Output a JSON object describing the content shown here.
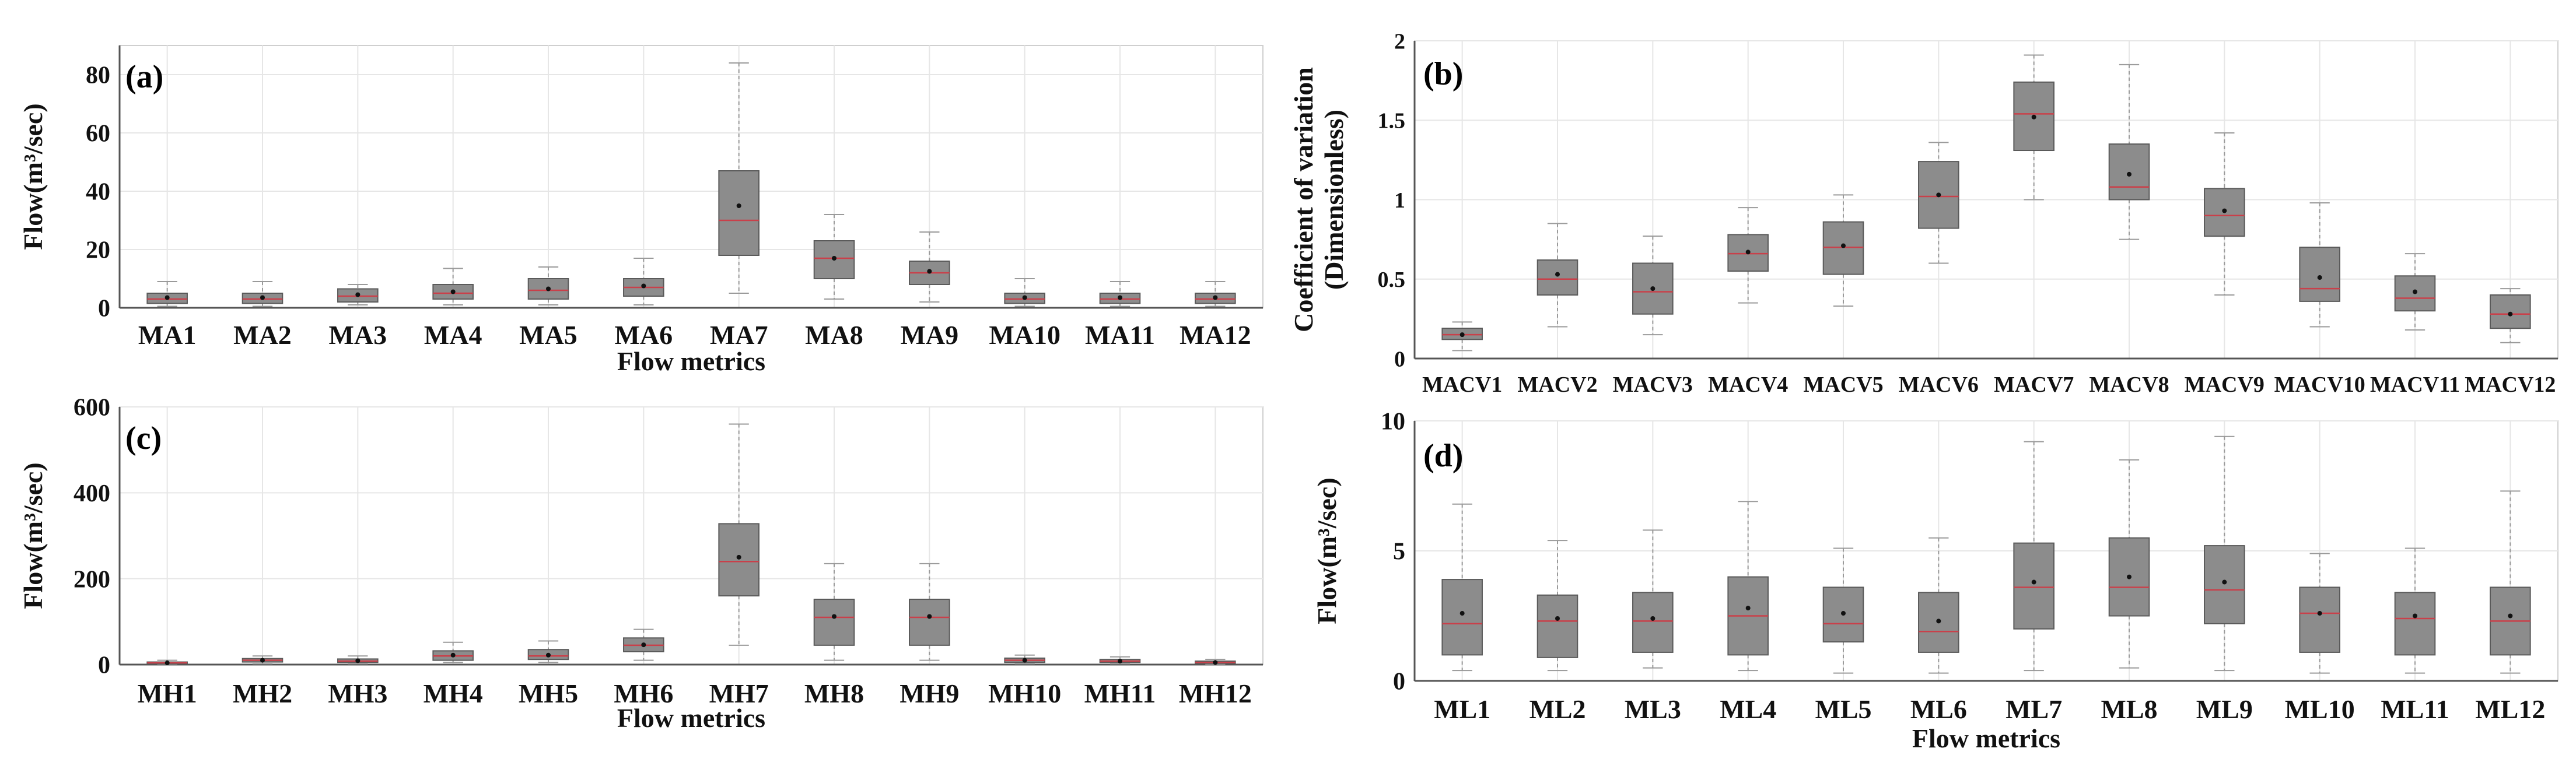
{
  "colors": {
    "box_fill": "#8c8c8c",
    "box_edge": "#5a5a5a",
    "whisker": "#9a9a9a",
    "median": "#c9404a",
    "mean": "#111111",
    "grid": "#e6e6e6",
    "axis": "#555555"
  },
  "chart_data": [
    {
      "type": "box",
      "panel_label": "(a)",
      "xlabel": "Flow metrics",
      "ylabel": "Flow(m³/sec)",
      "ylim": [
        0,
        90
      ],
      "yticks": [
        "0",
        "20",
        "40",
        "60",
        "80"
      ],
      "categories": [
        "MA1",
        "MA2",
        "MA3",
        "MA4",
        "MA5",
        "MA6",
        "MA7",
        "MA8",
        "MA9",
        "MA10",
        "MA11",
        "MA12"
      ],
      "boxes": [
        {
          "min": 0.5,
          "q1": 1.5,
          "median": 3,
          "q3": 5,
          "max": 9,
          "mean": 3.5
        },
        {
          "min": 0.5,
          "q1": 1.5,
          "median": 3,
          "q3": 5,
          "max": 9,
          "mean": 3.5
        },
        {
          "min": 1,
          "q1": 2,
          "median": 4,
          "q3": 6.5,
          "max": 8,
          "mean": 4.5
        },
        {
          "min": 1,
          "q1": 3,
          "median": 5,
          "q3": 8,
          "max": 13.5,
          "mean": 5.5
        },
        {
          "min": 1,
          "q1": 3,
          "median": 6,
          "q3": 10,
          "max": 14,
          "mean": 6.5
        },
        {
          "min": 1,
          "q1": 4,
          "median": 7,
          "q3": 10,
          "max": 17,
          "mean": 7.5
        },
        {
          "min": 5,
          "q1": 18,
          "median": 30,
          "q3": 47,
          "max": 84,
          "mean": 35
        },
        {
          "min": 3,
          "q1": 10,
          "median": 17,
          "q3": 23,
          "max": 32,
          "mean": 17
        },
        {
          "min": 2,
          "q1": 8,
          "median": 12,
          "q3": 16,
          "max": 26,
          "mean": 12.5
        },
        {
          "min": 0.5,
          "q1": 1.5,
          "median": 3,
          "q3": 5,
          "max": 10,
          "mean": 3.5
        },
        {
          "min": 0.5,
          "q1": 1.5,
          "median": 3,
          "q3": 5,
          "max": 9,
          "mean": 3.5
        },
        {
          "min": 0.5,
          "q1": 1.5,
          "median": 3,
          "q3": 5,
          "max": 9,
          "mean": 3.5
        }
      ]
    },
    {
      "type": "box",
      "panel_label": "(b)",
      "xlabel": "",
      "ylabel": "Coefficient of variation",
      "ylabel2": "(Dimensionless)",
      "ylim": [
        0,
        2
      ],
      "yticks": [
        "0",
        "0.5",
        "1",
        "1.5",
        "2"
      ],
      "categories": [
        "MACV1",
        "MACV2",
        "MACV3",
        "MACV4",
        "MACV5",
        "MACV6",
        "MACV7",
        "MACV8",
        "MACV9",
        "MACV10",
        "MACV11",
        "MACV12"
      ],
      "boxes": [
        {
          "min": 0.05,
          "q1": 0.12,
          "median": 0.15,
          "q3": 0.19,
          "max": 0.23,
          "mean": 0.15
        },
        {
          "min": 0.2,
          "q1": 0.4,
          "median": 0.5,
          "q3": 0.62,
          "max": 0.85,
          "mean": 0.53
        },
        {
          "min": 0.15,
          "q1": 0.28,
          "median": 0.42,
          "q3": 0.6,
          "max": 0.77,
          "mean": 0.44
        },
        {
          "min": 0.35,
          "q1": 0.55,
          "median": 0.66,
          "q3": 0.78,
          "max": 0.95,
          "mean": 0.67
        },
        {
          "min": 0.33,
          "q1": 0.53,
          "median": 0.7,
          "q3": 0.86,
          "max": 1.03,
          "mean": 0.71
        },
        {
          "min": 0.6,
          "q1": 0.82,
          "median": 1.02,
          "q3": 1.24,
          "max": 1.36,
          "mean": 1.03
        },
        {
          "min": 1.0,
          "q1": 1.31,
          "median": 1.54,
          "q3": 1.74,
          "max": 1.91,
          "mean": 1.52
        },
        {
          "min": 0.75,
          "q1": 1.0,
          "median": 1.08,
          "q3": 1.35,
          "max": 1.85,
          "mean": 1.16
        },
        {
          "min": 0.4,
          "q1": 0.77,
          "median": 0.9,
          "q3": 1.07,
          "max": 1.42,
          "mean": 0.93
        },
        {
          "min": 0.2,
          "q1": 0.36,
          "median": 0.44,
          "q3": 0.7,
          "max": 0.98,
          "mean": 0.51
        },
        {
          "min": 0.18,
          "q1": 0.3,
          "median": 0.38,
          "q3": 0.52,
          "max": 0.66,
          "mean": 0.42
        },
        {
          "min": 0.1,
          "q1": 0.19,
          "median": 0.28,
          "q3": 0.4,
          "max": 0.44,
          "mean": 0.28
        }
      ]
    },
    {
      "type": "box",
      "panel_label": "(c)",
      "xlabel": "Flow metrics",
      "ylabel": "Flow(m³/sec)",
      "ylim": [
        0,
        600
      ],
      "yticks": [
        "0",
        "200",
        "400",
        "600"
      ],
      "categories": [
        "MH1",
        "MH2",
        "MH3",
        "MH4",
        "MH5",
        "MH6",
        "MH7",
        "MH8",
        "MH9",
        "MH10",
        "MH11",
        "MH12"
      ],
      "boxes": [
        {
          "min": 1,
          "q1": 2,
          "median": 4,
          "q3": 6,
          "max": 10,
          "mean": 4
        },
        {
          "min": 2,
          "q1": 6,
          "median": 10,
          "q3": 14,
          "max": 20,
          "mean": 10
        },
        {
          "min": 2,
          "q1": 5,
          "median": 8,
          "q3": 13,
          "max": 20,
          "mean": 9
        },
        {
          "min": 5,
          "q1": 10,
          "median": 20,
          "q3": 32,
          "max": 52,
          "mean": 22
        },
        {
          "min": 5,
          "q1": 12,
          "median": 20,
          "q3": 35,
          "max": 55,
          "mean": 22
        },
        {
          "min": 10,
          "q1": 30,
          "median": 45,
          "q3": 62,
          "max": 82,
          "mean": 46
        },
        {
          "min": 45,
          "q1": 160,
          "median": 240,
          "q3": 328,
          "max": 560,
          "mean": 250
        },
        {
          "min": 10,
          "q1": 45,
          "median": 110,
          "q3": 152,
          "max": 235,
          "mean": 112
        },
        {
          "min": 10,
          "q1": 45,
          "median": 110,
          "q3": 152,
          "max": 235,
          "mean": 112
        },
        {
          "min": 2,
          "q1": 5,
          "median": 10,
          "q3": 15,
          "max": 22,
          "mean": 10
        },
        {
          "min": 2,
          "q1": 5,
          "median": 8,
          "q3": 12,
          "max": 18,
          "mean": 8
        },
        {
          "min": 1,
          "q1": 3,
          "median": 5,
          "q3": 8,
          "max": 12,
          "mean": 5
        }
      ]
    },
    {
      "type": "box",
      "panel_label": "(d)",
      "xlabel": "Flow metrics",
      "ylabel": "Flow(m³/sec)",
      "ylim": [
        0,
        10
      ],
      "yticks": [
        "0",
        "5",
        "10"
      ],
      "categories": [
        "ML1",
        "ML2",
        "ML3",
        "ML4",
        "ML5",
        "ML6",
        "ML7",
        "ML8",
        "ML9",
        "ML10",
        "ML11",
        "ML12"
      ],
      "boxes": [
        {
          "min": 0.4,
          "q1": 1.0,
          "median": 2.2,
          "q3": 3.9,
          "max": 6.8,
          "mean": 2.6
        },
        {
          "min": 0.4,
          "q1": 0.9,
          "median": 2.3,
          "q3": 3.3,
          "max": 5.4,
          "mean": 2.4
        },
        {
          "min": 0.5,
          "q1": 1.1,
          "median": 2.3,
          "q3": 3.4,
          "max": 5.8,
          "mean": 2.4
        },
        {
          "min": 0.4,
          "q1": 1.0,
          "median": 2.5,
          "q3": 4.0,
          "max": 6.9,
          "mean": 2.8
        },
        {
          "min": 0.3,
          "q1": 1.5,
          "median": 2.2,
          "q3": 3.6,
          "max": 5.1,
          "mean": 2.6
        },
        {
          "min": 0.3,
          "q1": 1.1,
          "median": 1.9,
          "q3": 3.4,
          "max": 5.5,
          "mean": 2.3
        },
        {
          "min": 0.4,
          "q1": 2.0,
          "median": 3.6,
          "q3": 5.3,
          "max": 9.2,
          "mean": 3.8
        },
        {
          "min": 0.5,
          "q1": 2.5,
          "median": 3.6,
          "q3": 5.5,
          "max": 8.5,
          "mean": 4.0
        },
        {
          "min": 0.4,
          "q1": 2.2,
          "median": 3.5,
          "q3": 5.2,
          "max": 9.4,
          "mean": 3.8
        },
        {
          "min": 0.3,
          "q1": 1.1,
          "median": 2.6,
          "q3": 3.6,
          "max": 4.9,
          "mean": 2.6
        },
        {
          "min": 0.3,
          "q1": 1.0,
          "median": 2.4,
          "q3": 3.4,
          "max": 5.1,
          "mean": 2.5
        },
        {
          "min": 0.3,
          "q1": 1.0,
          "median": 2.3,
          "q3": 3.6,
          "max": 7.3,
          "mean": 2.5
        }
      ]
    }
  ]
}
